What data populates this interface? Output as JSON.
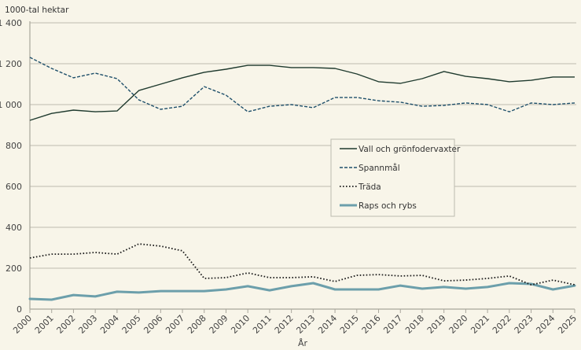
{
  "chart_data": {
    "type": "line",
    "title": "",
    "ylabel": "1000-tal hektar",
    "xlabel": "År",
    "ylim": [
      0,
      1400
    ],
    "yticks": [
      0,
      200,
      400,
      600,
      800,
      1000,
      1200,
      1400
    ],
    "ytick_labels": [
      "0",
      "200",
      "400",
      "600",
      "800",
      "1 000",
      "1 200",
      "1 400"
    ],
    "grid": true,
    "legend_position": "center-right",
    "x": [
      "2000",
      "2001",
      "2002",
      "2003",
      "2004",
      "2005",
      "2006",
      "2007",
      "2008",
      "2009",
      "2010",
      "2011",
      "2012",
      "2013",
      "2014",
      "2015",
      "2016",
      "2017",
      "2018",
      "2019",
      "2020",
      "2021",
      "2022",
      "2023",
      "2024",
      "2025"
    ],
    "series": [
      {
        "name": "Vall och grönfodervaxter",
        "style": "solid",
        "color": "#1f3a2e",
        "values": [
          923,
          957,
          973,
          965,
          969,
          1069,
          1100,
          1131,
          1158,
          1173,
          1192,
          1192,
          1181,
          1181,
          1177,
          1150,
          1112,
          1104,
          1127,
          1162,
          1138,
          1127,
          1112,
          1119,
          1135,
          1135
        ]
      },
      {
        "name": "Spannmål",
        "style": "dashed",
        "color": "#1e4f6a",
        "values": [
          1231,
          1177,
          1131,
          1154,
          1127,
          1023,
          977,
          992,
          1088,
          1046,
          965,
          992,
          1000,
          985,
          1035,
          1035,
          1019,
          1012,
          992,
          996,
          1008,
          1000,
          965,
          1008,
          1000,
          1008
        ]
      },
      {
        "name": "Träda",
        "style": "dotted",
        "color": "#1a1a1a",
        "values": [
          250,
          269,
          269,
          277,
          269,
          319,
          308,
          285,
          150,
          154,
          177,
          154,
          154,
          158,
          135,
          165,
          169,
          162,
          165,
          138,
          142,
          150,
          162,
          119,
          142,
          119
        ]
      },
      {
        "name": "Raps och rybs",
        "style": "thick",
        "color": "#6c9fab",
        "values": [
          50,
          46,
          69,
          62,
          85,
          81,
          88,
          88,
          88,
          96,
          112,
          92,
          112,
          127,
          96,
          96,
          96,
          115,
          100,
          108,
          100,
          108,
          127,
          123,
          96,
          115
        ]
      }
    ]
  },
  "legend": {
    "items": [
      "Vall och grönfodervaxter",
      "Spannmål",
      "Träda",
      "Raps och rybs"
    ]
  }
}
